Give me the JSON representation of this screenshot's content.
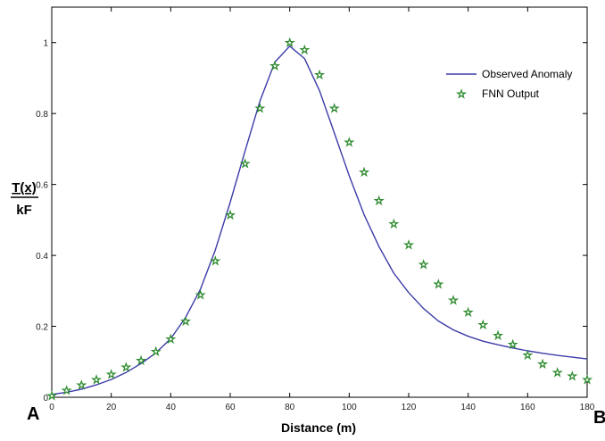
{
  "chart_data": {
    "type": "line",
    "xlabel": "Distance (m)",
    "ylabel_top": "T(x)",
    "ylabel_bottom": "kF",
    "xlim": [
      0,
      180
    ],
    "ylim": [
      0,
      1.1
    ],
    "xticks": [
      0,
      20,
      40,
      60,
      80,
      100,
      120,
      140,
      160,
      180
    ],
    "yticks": [
      0,
      0.2,
      0.4,
      0.6,
      0.8,
      1
    ],
    "ytick_labels": [
      "0",
      "0.2",
      "0.4",
      "0.6",
      "0.8",
      "1"
    ],
    "grid": false,
    "legend_position": "top-right",
    "corner_labels": {
      "left": "A",
      "right": "B"
    },
    "series": [
      {
        "name": "Observed Anomaly",
        "style": "line",
        "color": "#3b3ba8",
        "x": [
          0,
          5,
          10,
          15,
          20,
          25,
          30,
          35,
          40,
          45,
          50,
          55,
          60,
          65,
          70,
          75,
          80,
          85,
          90,
          95,
          100,
          105,
          110,
          115,
          120,
          125,
          130,
          135,
          140,
          145,
          150,
          155,
          160,
          165,
          170,
          175,
          180
        ],
        "y": [
          0.008,
          0.014,
          0.023,
          0.035,
          0.05,
          0.07,
          0.095,
          0.125,
          0.165,
          0.225,
          0.305,
          0.415,
          0.55,
          0.695,
          0.835,
          0.945,
          0.99,
          0.955,
          0.865,
          0.745,
          0.625,
          0.515,
          0.425,
          0.35,
          0.295,
          0.25,
          0.215,
          0.19,
          0.172,
          0.158,
          0.148,
          0.139,
          0.131,
          0.124,
          0.118,
          0.113,
          0.108
        ]
      },
      {
        "name": "FNN Output",
        "style": "marker",
        "marker": "star",
        "color": "#2e8b2e",
        "x": [
          0,
          5,
          10,
          15,
          20,
          25,
          30,
          35,
          40,
          45,
          50,
          55,
          60,
          65,
          70,
          75,
          80,
          85,
          90,
          95,
          100,
          105,
          110,
          115,
          120,
          125,
          130,
          135,
          140,
          145,
          150,
          155,
          160,
          165,
          170,
          175,
          180
        ],
        "y": [
          0.005,
          0.02,
          0.035,
          0.05,
          0.065,
          0.085,
          0.105,
          0.13,
          0.165,
          0.215,
          0.29,
          0.385,
          0.515,
          0.66,
          0.815,
          0.935,
          1.0,
          0.98,
          0.91,
          0.815,
          0.72,
          0.635,
          0.555,
          0.49,
          0.43,
          0.375,
          0.32,
          0.275,
          0.24,
          0.205,
          0.175,
          0.15,
          0.12,
          0.095,
          0.07,
          0.06,
          0.05
        ]
      }
    ]
  }
}
